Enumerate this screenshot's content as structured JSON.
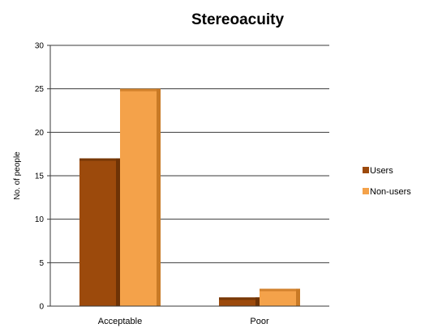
{
  "chart_data": {
    "type": "bar",
    "title": "Stereoacuity",
    "xlabel": "",
    "ylabel": "No. of people",
    "categories": [
      "Acceptable",
      "Poor"
    ],
    "series": [
      {
        "name": "Users",
        "values": [
          17,
          1
        ],
        "color": "#9c4a0c",
        "side_color": "#6e3306"
      },
      {
        "name": "Non-users",
        "values": [
          25,
          2
        ],
        "color": "#f4a24a",
        "side_color": "#c97a26"
      }
    ],
    "ylim": [
      0,
      30
    ],
    "yticks": [
      0,
      5,
      10,
      15,
      20,
      25,
      30
    ],
    "grid": true,
    "legend": "right",
    "axis_color": "#3a3a3a"
  }
}
